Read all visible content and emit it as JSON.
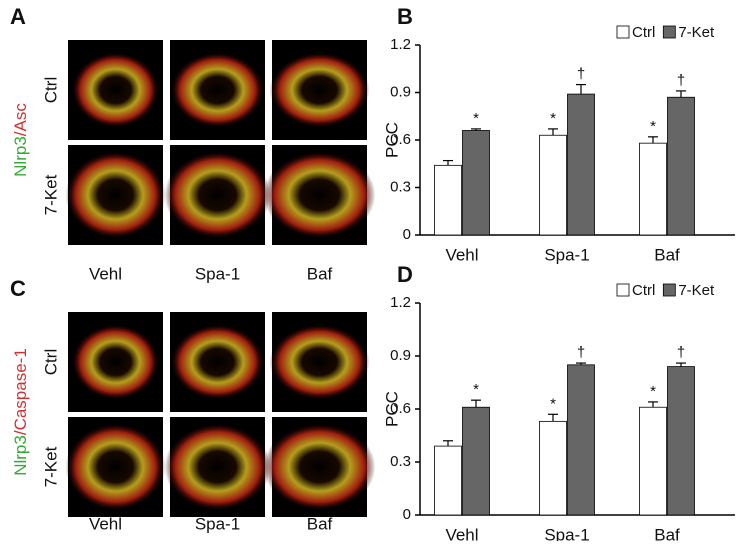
{
  "images": [
    {
      "label": "A",
      "stain": [
        "Nlrp3",
        "/Asc"
      ],
      "rows": [
        "Ctrl",
        "7-Ket"
      ],
      "columns": [
        "Vehl",
        "Spa-1",
        "Baf"
      ]
    },
    {
      "label": "C",
      "stain": [
        "Nlrp3",
        "/Caspase-1"
      ],
      "rows": [
        "Ctrl",
        "7-Ket"
      ],
      "columns": [
        "Vehl",
        "Spa-1",
        "Baf"
      ]
    }
  ],
  "chart_data": [
    {
      "type": "bar",
      "label": "B",
      "ylabel": "PCC",
      "categories": [
        "Vehl",
        "Spa-1",
        "Baf"
      ],
      "series": [
        {
          "name": "Ctrl",
          "color": "#ffffff",
          "values": [
            0.44,
            0.63,
            0.58
          ],
          "errors": [
            0.03,
            0.04,
            0.04
          ],
          "markers": [
            null,
            "*",
            "*"
          ]
        },
        {
          "name": "7-Ket",
          "color": "#666666",
          "values": [
            0.66,
            0.89,
            0.87
          ],
          "errors": [
            0.01,
            0.06,
            0.04
          ],
          "markers": [
            "*",
            "†",
            "†"
          ]
        }
      ],
      "ylim": [
        0,
        1.2
      ],
      "yticks": [
        0,
        0.3,
        0.6,
        0.9,
        1.2
      ],
      "legend": "top-right"
    },
    {
      "type": "bar",
      "label": "D",
      "ylabel": "PCC",
      "categories": [
        "Vehl",
        "Spa-1",
        "Baf"
      ],
      "series": [
        {
          "name": "Ctrl",
          "color": "#ffffff",
          "values": [
            0.39,
            0.53,
            0.61
          ],
          "errors": [
            0.03,
            0.04,
            0.03
          ],
          "markers": [
            null,
            "*",
            "*"
          ]
        },
        {
          "name": "7-Ket",
          "color": "#666666",
          "values": [
            0.61,
            0.85,
            0.84
          ],
          "errors": [
            0.04,
            0.01,
            0.02
          ],
          "markers": [
            "*",
            "†",
            "†"
          ]
        }
      ],
      "ylim": [
        0,
        1.2
      ],
      "yticks": [
        0,
        0.3,
        0.6,
        0.9,
        1.2
      ],
      "legend": "top-right"
    }
  ]
}
